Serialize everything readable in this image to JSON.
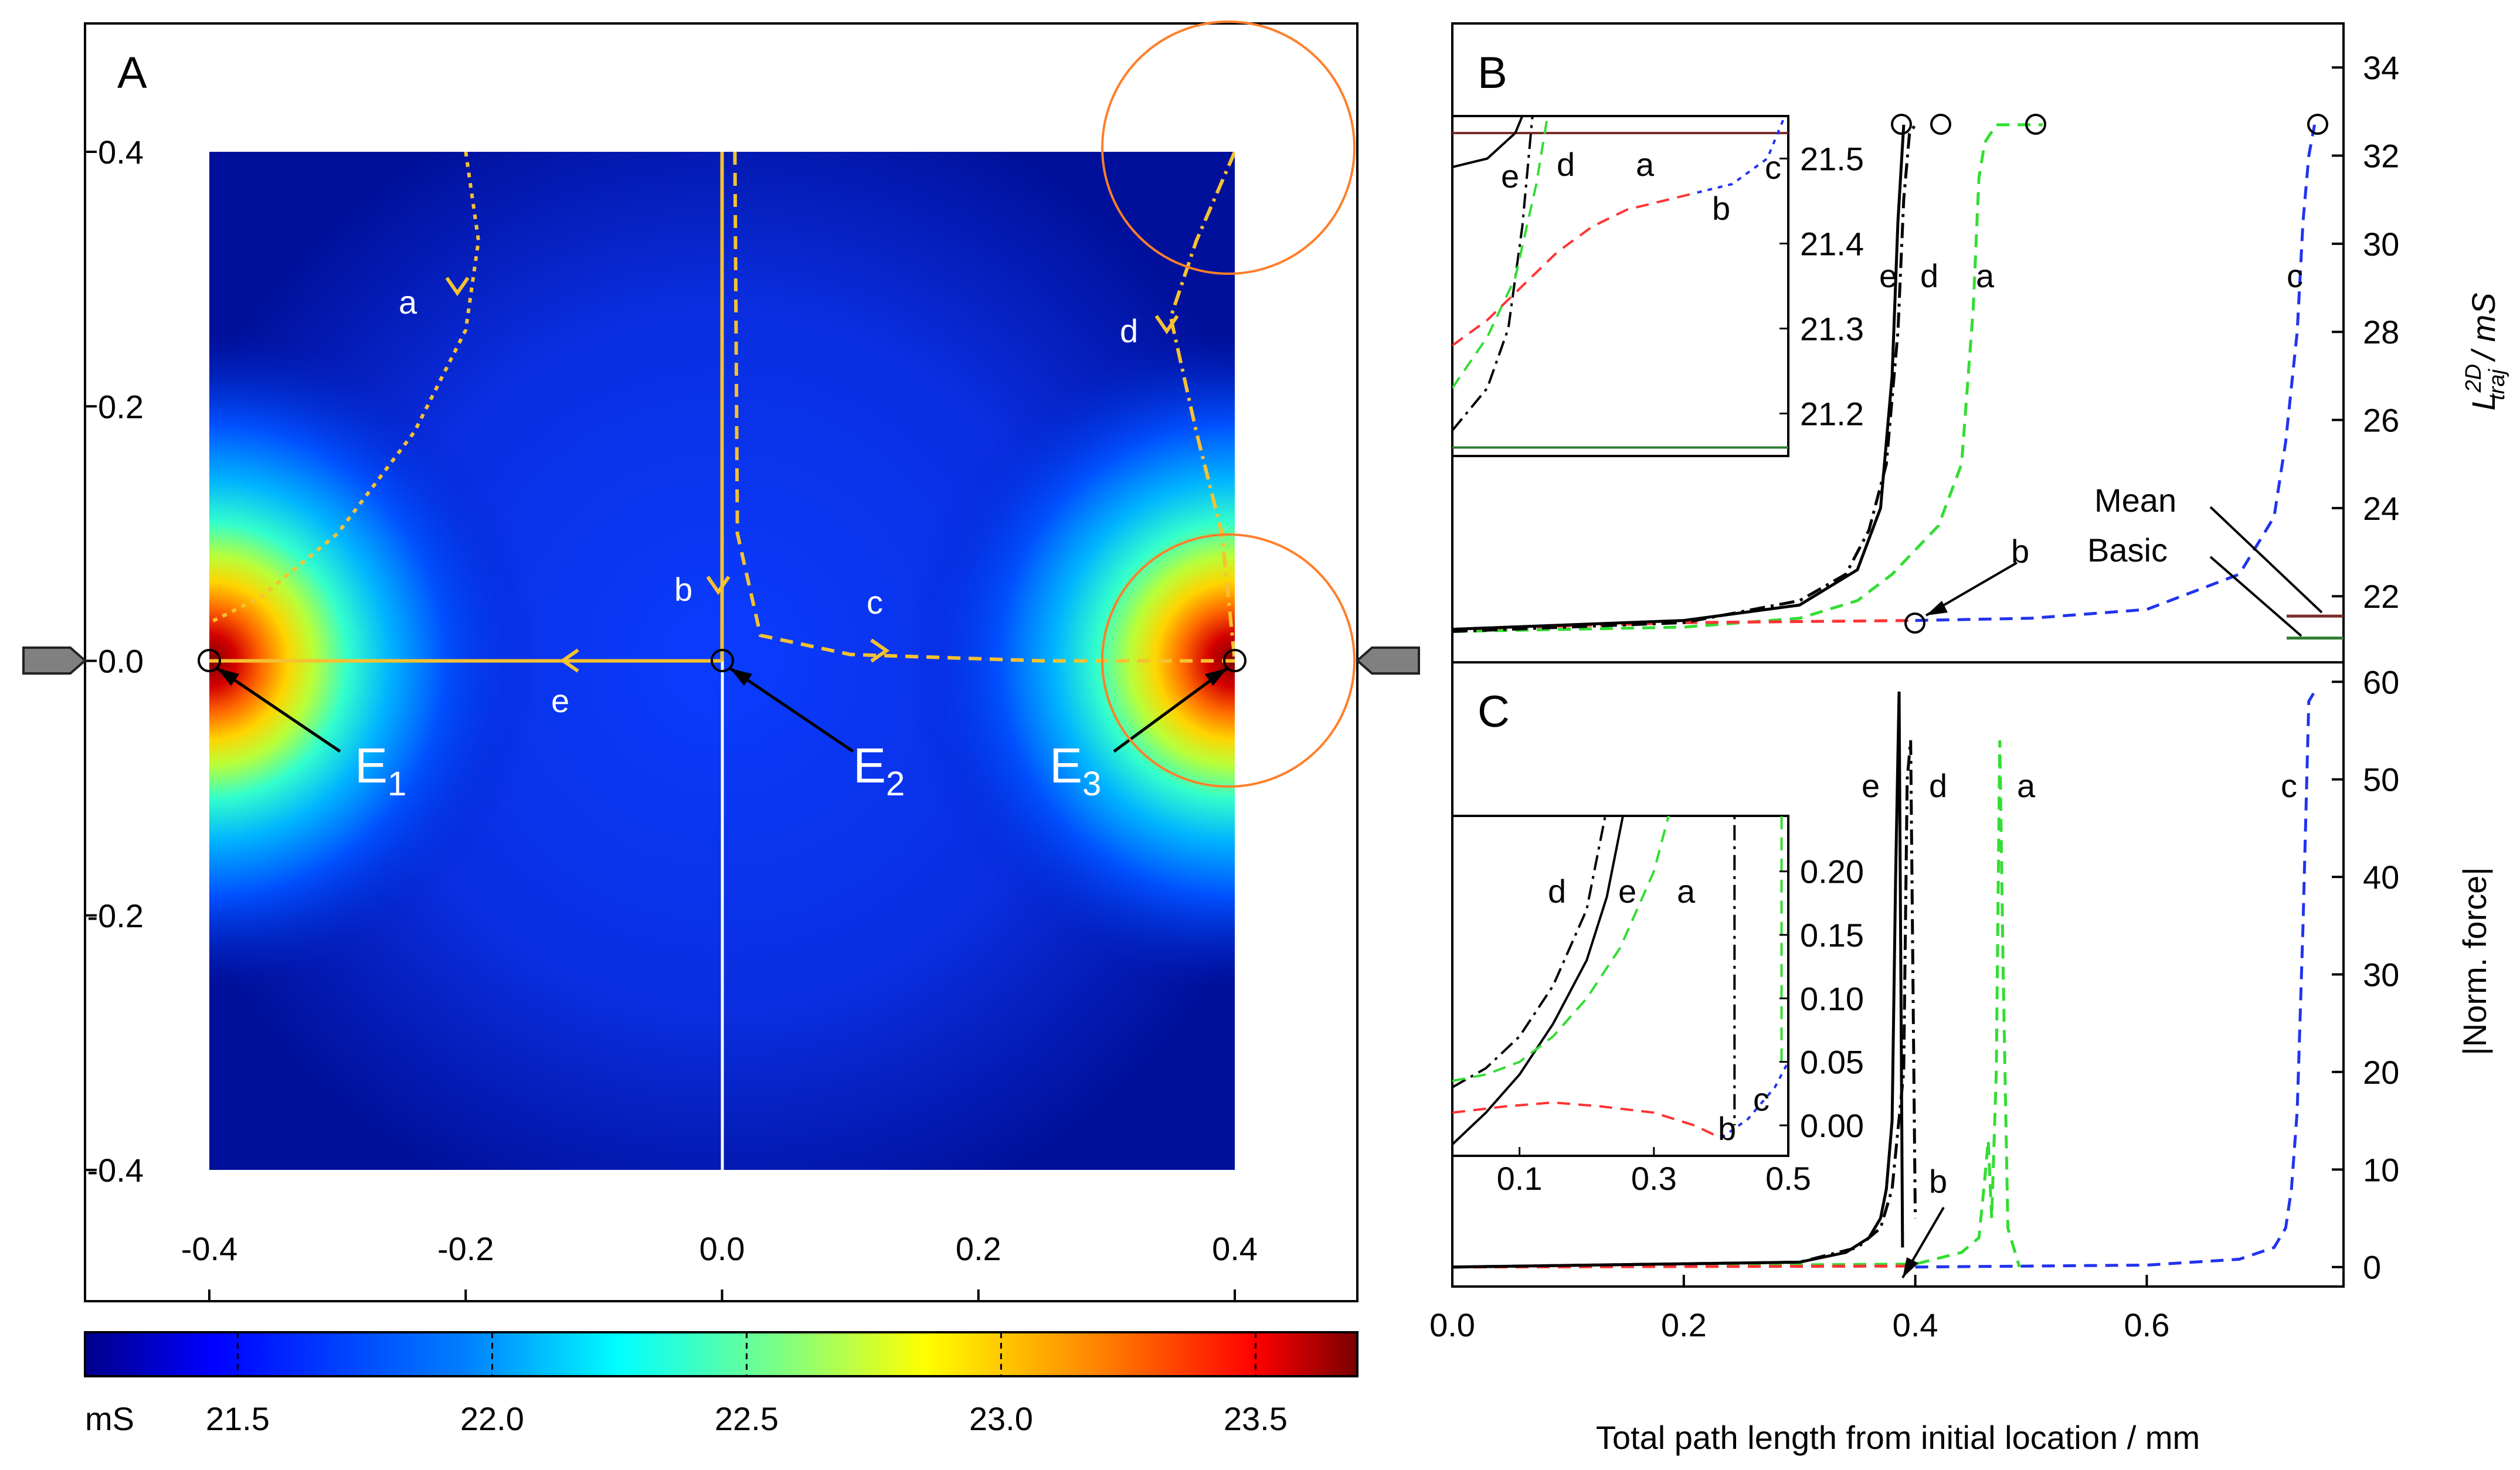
{
  "chart_data": [
    {
      "panel": "A",
      "type": "heatmap",
      "xlim": [
        -0.4,
        0.4
      ],
      "ylim": [
        -0.4,
        0.4
      ],
      "x_ticks": [
        "-0.4",
        "-0.2",
        "0.0",
        "0.2",
        "0.4"
      ],
      "y_ticks": [
        "0.4",
        "0.2",
        "0.0",
        "-0.2",
        "-0.4"
      ],
      "colorbar": {
        "unit": "mS",
        "ticks": [
          "21.5",
          "22.0",
          "22.5",
          "23.0",
          "23.5"
        ],
        "range": [
          21.2,
          23.7
        ]
      },
      "electrodes": [
        {
          "name": "E",
          "sub": "1",
          "x": -0.4,
          "y": 0.0
        },
        {
          "name": "E",
          "sub": "2",
          "x": 0.0,
          "y": 0.0
        },
        {
          "name": "E",
          "sub": "3",
          "x": 0.4,
          "y": 0.0
        }
      ],
      "trajectories": [
        {
          "label": "a",
          "style": "dotted",
          "points": [
            [
              -0.2,
              0.4
            ],
            [
              -0.19,
              0.33
            ],
            [
              -0.2,
              0.26
            ],
            [
              -0.24,
              0.18
            ],
            [
              -0.3,
              0.1
            ],
            [
              -0.36,
              0.05
            ],
            [
              -0.4,
              0.03
            ]
          ]
        },
        {
          "label": "b",
          "style": "solid",
          "points": [
            [
              0.0,
              0.4
            ],
            [
              0.0,
              0.0
            ]
          ]
        },
        {
          "label": "c",
          "style": "dashed",
          "points": [
            [
              0.01,
              0.4
            ],
            [
              0.012,
              0.1
            ],
            [
              0.03,
              0.02
            ],
            [
              0.1,
              0.005
            ],
            [
              0.25,
              0.0
            ],
            [
              0.4,
              0.0
            ]
          ]
        },
        {
          "label": "d",
          "style": "dashdot",
          "points": [
            [
              0.4,
              0.4
            ],
            [
              0.37,
              0.33
            ],
            [
              0.35,
              0.27
            ],
            [
              0.37,
              0.18
            ],
            [
              0.39,
              0.1
            ],
            [
              0.4,
              0.0
            ]
          ]
        },
        {
          "label": "e",
          "style": "solid",
          "points": [
            [
              0.0,
              0.0
            ],
            [
              -0.4,
              0.0
            ]
          ]
        }
      ]
    },
    {
      "panel": "B",
      "type": "line",
      "xlim": [
        0.0,
        0.77
      ],
      "ylim": [
        20.5,
        35
      ],
      "ylabel": "L_traj^2D / mS",
      "y_ticks": [
        "22",
        "24",
        "26",
        "28",
        "30",
        "32",
        "34"
      ],
      "reference_lines": [
        {
          "name": "Mean",
          "y": 21.55,
          "color": "#7B2C2C"
        },
        {
          "name": "Basic",
          "y": 21.05,
          "color": "#2E7D32"
        }
      ],
      "series": [
        {
          "name": "a",
          "color": "#33DD33",
          "style": "dashed",
          "x": [
            0.0,
            0.2,
            0.3,
            0.35,
            0.38,
            0.42,
            0.44,
            0.45,
            0.455,
            0.46,
            0.47,
            0.48,
            0.51
          ],
          "y": [
            21.2,
            21.3,
            21.5,
            21.9,
            22.5,
            23.6,
            25.0,
            28.5,
            31.5,
            32.3,
            32.7,
            32.7,
            32.7
          ]
        },
        {
          "name": "b",
          "color": "#FF3333",
          "style": "dashed",
          "x": [
            0.0,
            0.2,
            0.4
          ],
          "y": [
            21.25,
            21.4,
            21.45
          ]
        },
        {
          "name": "c",
          "color": "#2233EE",
          "style": "dashed",
          "x": [
            0.4,
            0.5,
            0.6,
            0.68,
            0.71,
            0.72,
            0.73,
            0.735,
            0.74,
            0.745
          ],
          "y": [
            21.45,
            21.5,
            21.7,
            22.5,
            23.8,
            25.5,
            28.0,
            30.5,
            32.0,
            32.7
          ]
        },
        {
          "name": "d",
          "color": "#000000",
          "style": "dashdot",
          "x": [
            0.0,
            0.2,
            0.3,
            0.34,
            0.36,
            0.375,
            0.385,
            0.39,
            0.395,
            0.4
          ],
          "y": [
            21.2,
            21.4,
            21.9,
            22.5,
            23.5,
            25.0,
            28.0,
            31.0,
            32.5,
            32.7
          ]
        },
        {
          "name": "e",
          "color": "#000000",
          "style": "solid",
          "x": [
            0.0,
            0.2,
            0.3,
            0.35,
            0.37,
            0.38,
            0.385,
            0.39
          ],
          "y": [
            21.25,
            21.45,
            21.8,
            22.6,
            24.0,
            27.0,
            30.5,
            32.7
          ]
        }
      ],
      "inset": {
        "ylim": [
          21.15,
          21.55
        ],
        "y_ticks": [
          "21.5",
          "21.4",
          "21.3",
          "21.2"
        ],
        "labels": [
          "e",
          "d",
          "a",
          "b",
          "c"
        ]
      },
      "curve_labels": [
        "e",
        "d",
        "a",
        "c",
        "b"
      ]
    },
    {
      "panel": "C",
      "type": "line",
      "xlabel": "Total path length from initial location / mm",
      "ylabel": "|Norm. force|",
      "xlim": [
        0.0,
        0.77
      ],
      "ylim": [
        -2,
        62
      ],
      "x_ticks": [
        "0.0",
        "0.2",
        "0.4",
        "0.6"
      ],
      "y_ticks": [
        "0",
        "10",
        "20",
        "30",
        "40",
        "50",
        "60"
      ],
      "series": [
        {
          "name": "a",
          "color": "#33DD33",
          "style": "dashed",
          "x": [
            0.0,
            0.4,
            0.44,
            0.455,
            0.46,
            0.463,
            0.466,
            0.47,
            0.473,
            0.476,
            0.48,
            0.49
          ],
          "y": [
            0,
            0.3,
            1.5,
            3.0,
            9.0,
            13.0,
            5.0,
            20.0,
            54.0,
            30.0,
            4.0,
            0
          ]
        },
        {
          "name": "b",
          "color": "#FF3333",
          "style": "dashed",
          "x": [
            0.0,
            0.2,
            0.4
          ],
          "y": [
            0,
            0.05,
            0.1
          ]
        },
        {
          "name": "c",
          "color": "#2233EE",
          "style": "dashed",
          "x": [
            0.4,
            0.6,
            0.68,
            0.71,
            0.72,
            0.725,
            0.73,
            0.735,
            0.74,
            0.745
          ],
          "y": [
            0,
            0.2,
            0.8,
            2.0,
            4.0,
            8.0,
            16.0,
            35.0,
            58.0,
            59.0
          ]
        },
        {
          "name": "d",
          "color": "#000000",
          "style": "dashdot",
          "x": [
            0.0,
            0.3,
            0.35,
            0.37,
            0.38,
            0.385,
            0.39,
            0.393,
            0.396,
            0.4
          ],
          "y": [
            0,
            0.5,
            2.0,
            4.0,
            8.0,
            14.0,
            20.0,
            50.0,
            54.0,
            5.0
          ]
        },
        {
          "name": "e",
          "color": "#000000",
          "style": "solid",
          "x": [
            0.0,
            0.3,
            0.34,
            0.36,
            0.37,
            0.375,
            0.38,
            0.383,
            0.386,
            0.389
          ],
          "y": [
            0,
            0.5,
            1.5,
            3.0,
            5.0,
            8.0,
            15.0,
            40.0,
            59.0,
            2.0
          ]
        }
      ],
      "inset": {
        "x_ticks": [
          "0.1",
          "0.3",
          "0.5"
        ],
        "y_ticks": [
          "0.20",
          "0.15",
          "0.10",
          "0.05",
          "0.00"
        ],
        "labels": [
          "d",
          "e",
          "a",
          "b",
          "c"
        ]
      },
      "curve_labels": [
        "e",
        "d",
        "a",
        "c",
        "b"
      ]
    }
  ],
  "colorbar_unit_label": "mS"
}
